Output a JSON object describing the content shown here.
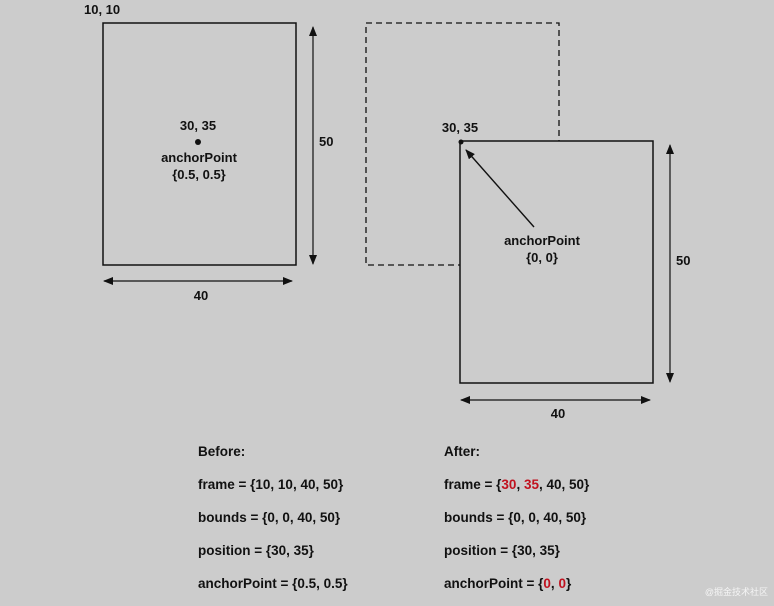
{
  "before_diagram": {
    "origin_label": "10, 10",
    "point_label": "30, 35",
    "anchor_label": "anchorPoint",
    "anchor_value": "{0.5, 0.5}",
    "width_label": "40",
    "height_label": "50"
  },
  "after_diagram": {
    "point_label": "30, 35",
    "anchor_label": "anchorPoint",
    "anchor_value": "{0, 0}",
    "width_label": "40",
    "height_label": "50"
  },
  "before": {
    "heading": "Before:",
    "frame": "frame = {10, 10, 40, 50}",
    "bounds": "bounds = {0, 0, 40, 50}",
    "position": "position = {30, 35}",
    "anchor": "anchorPoint = {0.5, 0.5}"
  },
  "after": {
    "heading": "After:",
    "frame_prefix": "frame = {",
    "frame_x": "30",
    "frame_sep1": ", ",
    "frame_y": "35",
    "frame_suffix": ", 40, 50}",
    "bounds": "bounds = {0, 0, 40, 50}",
    "position": "position = {30, 35}",
    "anchor_prefix": "anchorPoint = {",
    "anchor_x": "0",
    "anchor_sep": ", ",
    "anchor_y": "0",
    "anchor_suffix": "}"
  },
  "highlight_color": "#c1121f",
  "watermark": "@掘金技术社区"
}
